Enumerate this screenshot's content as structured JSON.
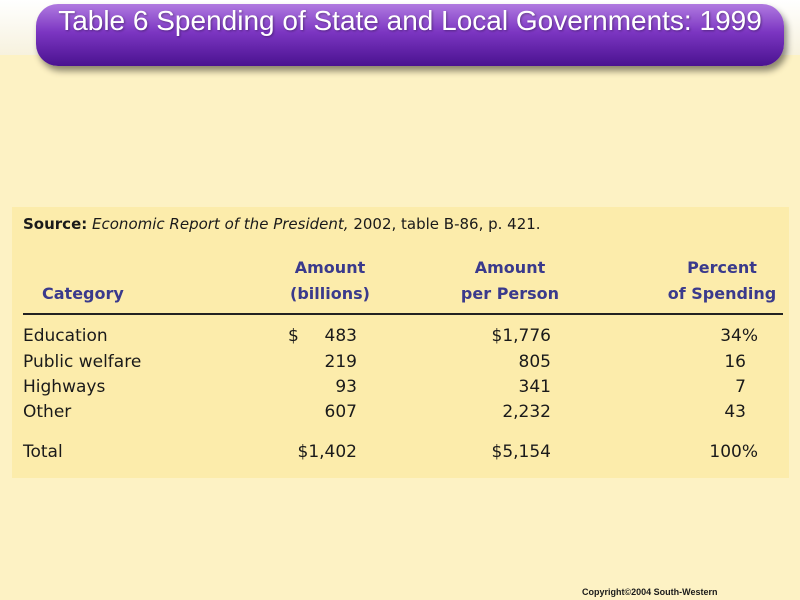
{
  "slide": {
    "title": "Table 6 Spending of State and Local Governments: 1999",
    "copyright": "Copyright©2004 South-Western"
  },
  "source": {
    "label": "Source:",
    "work": "Economic Report of the President,",
    "detail": "2002, table B-86, p. 421."
  },
  "headers": {
    "category": "Category",
    "amount_line1": "Amount",
    "amount_line2": "(billions)",
    "per_person_line1": "Amount",
    "per_person_line2": "per Person",
    "percent_line1": "Percent",
    "percent_line2": "of Spending"
  },
  "rows": [
    {
      "category": "Education",
      "amount_prefix": "$",
      "amount": "483",
      "per_person": "$1,776",
      "percent": "34%"
    },
    {
      "category": "Public welfare",
      "amount_prefix": "",
      "amount": "219",
      "per_person": "805",
      "percent": "16"
    },
    {
      "category": "Highways",
      "amount_prefix": "",
      "amount": "93",
      "per_person": "341",
      "percent": "7"
    },
    {
      "category": "Other",
      "amount_prefix": "",
      "amount": "607",
      "per_person": "2,232",
      "percent": "43"
    }
  ],
  "total": {
    "category": "Total",
    "amount": "$1,402",
    "per_person": "$5,154",
    "percent": "100%"
  }
}
